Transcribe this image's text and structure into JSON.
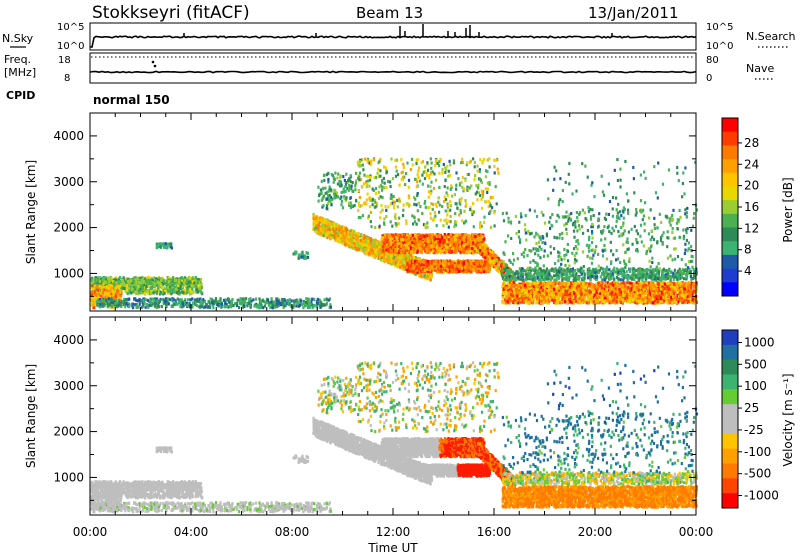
{
  "header": {
    "radar": "Stokkseyri (fitACF)",
    "beam": "Beam 13",
    "date": "13/Jan/2011"
  },
  "noise_panel": {
    "left_label": "N.Sky",
    "right_label": "N.Search",
    "left_ticks": [
      "10^5",
      "10^0"
    ],
    "right_ticks": [
      "10^5",
      "10^0"
    ]
  },
  "freq_panel": {
    "left_label_1": "Freq.",
    "left_label_2": "[MHz]",
    "right_label": "Nave",
    "left_ticks": [
      "18",
      "8"
    ],
    "right_ticks": [
      "80",
      "0"
    ]
  },
  "cpid": {
    "label": "CPID",
    "value": "normal 150"
  },
  "x_axis": {
    "label": "Time UT",
    "ticks": [
      "00:00",
      "04:00",
      "08:00",
      "12:00",
      "16:00",
      "20:00",
      "00:00"
    ]
  },
  "power_colorbar": {
    "label": "Power [dB]",
    "ticks": [
      "28",
      "24",
      "20",
      "16",
      "12",
      "8",
      "4"
    ],
    "colors": [
      "#ff0000",
      "#ff3c00",
      "#ff7a00",
      "#ffa000",
      "#ffc400",
      "#e8d800",
      "#9acd32",
      "#4caf50",
      "#2e8b57",
      "#3cb371",
      "#1e5aa8",
      "#1e3ccf",
      "#0000ff"
    ]
  },
  "velocity_colorbar": {
    "label": "Velocity [m s⁻¹]",
    "ticks": [
      "1000",
      "500",
      "100",
      "25",
      "-25",
      "-100",
      "-500",
      "-1000"
    ],
    "colors": [
      "#1f3fbf",
      "#1f6fa0",
      "#2e8b57",
      "#3cb371",
      "#66cc33",
      "#bebebe",
      "#bebebe",
      "#ffc400",
      "#ffa000",
      "#ff7a00",
      "#ff4500",
      "#ff0000"
    ]
  },
  "chart_data": [
    {
      "type": "line",
      "name_left": "N.Sky",
      "name_right": "N.Search",
      "x_range_hours": [
        0,
        24
      ],
      "y_scale": "log",
      "y_range": [
        1,
        100000
      ]
    },
    {
      "type": "line",
      "name_left": "Freq.",
      "name_right": "Nave",
      "x_range_hours": [
        0,
        24
      ],
      "y_range_left_mhz": [
        8,
        18
      ],
      "y_range_right": [
        0,
        80
      ],
      "freq_mhz_approx": 8.8
    },
    {
      "type": "heatmap",
      "x_label": "Time UT",
      "y_label": "Slant Range [km]",
      "x_range_hours": [
        0,
        24
      ],
      "y_range_km": [
        180,
        4500
      ],
      "y_ticks_km": [
        1000,
        2000,
        3000,
        4000
      ],
      "colorbar": "Power [dB]",
      "color_range_db": [
        0,
        32
      ]
    },
    {
      "type": "heatmap",
      "x_label": "Time UT",
      "y_label": "Slant Range [km]",
      "x_range_hours": [
        0,
        24
      ],
      "y_range_km": [
        180,
        4500
      ],
      "y_ticks_km": [
        1000,
        2000,
        3000,
        4000
      ],
      "colorbar": "Velocity [m s⁻¹]",
      "color_range_ms": [
        -1000,
        1000
      ]
    }
  ]
}
